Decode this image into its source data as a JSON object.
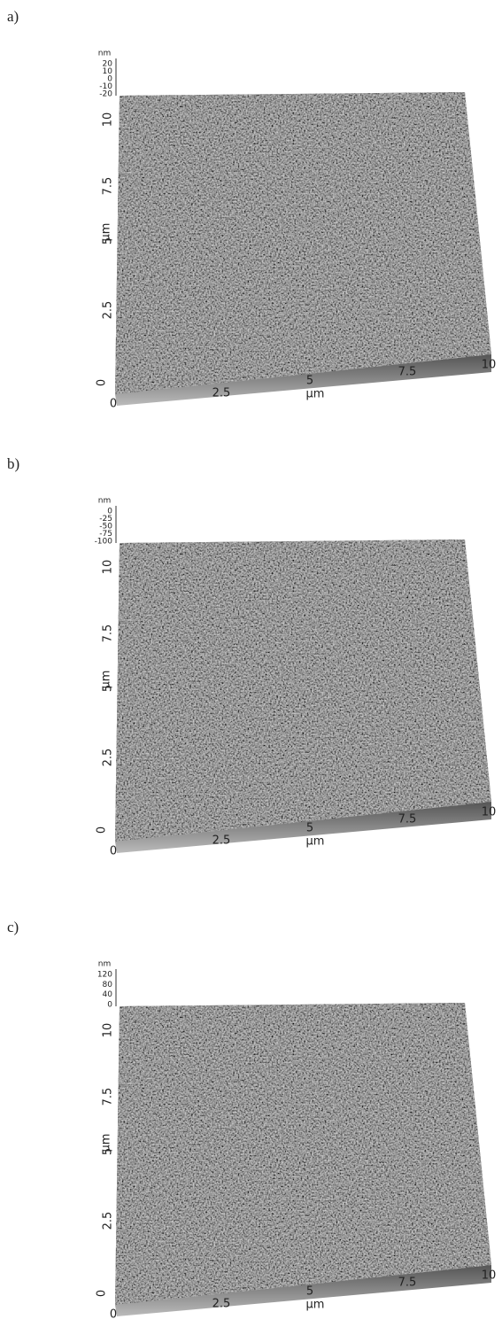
{
  "panels": [
    {
      "label": "a)",
      "z_unit": "nm",
      "z_ticks": [
        "20",
        "10",
        "0",
        "-10",
        "-20"
      ],
      "y_unit": "µm",
      "y_ticks": [
        "0",
        "2.5",
        "5",
        "7.5",
        "10"
      ],
      "x_unit": "µm",
      "x_ticks": [
        "0",
        "2.5",
        "5",
        "7.5",
        "10"
      ]
    },
    {
      "label": "b)",
      "z_unit": "nm",
      "z_ticks": [
        "0",
        "-25",
        "-50",
        "-75",
        "-100"
      ],
      "y_unit": "µm",
      "y_ticks": [
        "0",
        "2.5",
        "5",
        "7.5",
        "10"
      ],
      "x_unit": "µm",
      "x_ticks": [
        "0",
        "2.5",
        "5",
        "7.5",
        "10"
      ]
    },
    {
      "label": "c)",
      "z_unit": "nm",
      "z_ticks": [
        "120",
        "80",
        "40",
        "0"
      ],
      "y_unit": "µm",
      "y_ticks": [
        "0",
        "2.5",
        "5",
        "7.5",
        "10"
      ],
      "x_unit": "µm",
      "x_ticks": [
        "0",
        "2.5",
        "5",
        "7.5",
        "10"
      ]
    }
  ]
}
